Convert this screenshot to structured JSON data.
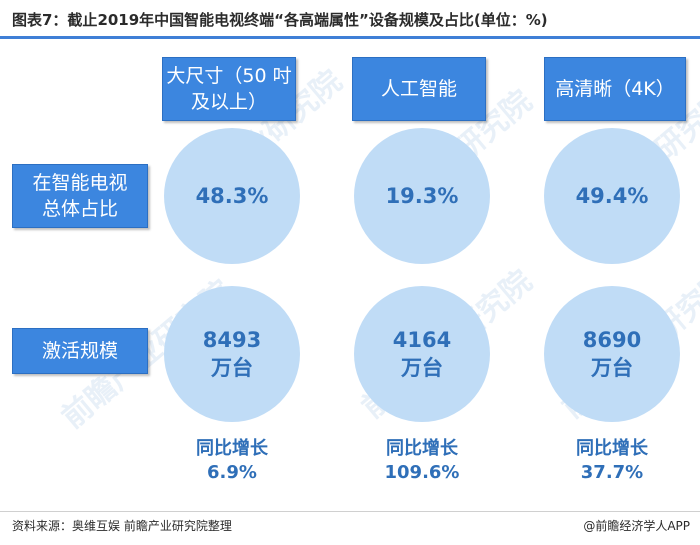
{
  "title": "图表7：截止2019年中国智能电视终端“各高端属性”设备规模及占比(单位：%)",
  "columns": [
    {
      "label": "大尺寸（50 吋及以上）"
    },
    {
      "label": "人工智能"
    },
    {
      "label": "高清晰（4K）"
    }
  ],
  "rows": {
    "share_label": "在智能电视 总体占比",
    "scale_label": "激活规模"
  },
  "growth_label": "同比增长",
  "watermark_text": "前瞻产业研究院",
  "footer": {
    "source": "资料来源：奥维互娱 前瞻产业研究院整理",
    "brand": "@前瞻经济学人APP"
  },
  "colors": {
    "accent_blue": "#3c86df",
    "circle_fill": "#c0dcf6",
    "value_text": "#2f6fb8"
  },
  "chart_data": {
    "type": "table",
    "title": "图表7：截止2019年中国智能电视终端“各高端属性”设备规模及占比(单位：%)",
    "categories": [
      "大尺寸（50 吋及以上）",
      "人工智能",
      "高清晰（4K）"
    ],
    "share_values": [
      "48.3%",
      "19.3%",
      "49.4%"
    ],
    "scale_values": [
      "8493",
      "4164",
      "8690"
    ],
    "scale_unit": "万台",
    "growth_values": [
      "6.9%",
      "109.6%",
      "37.7%"
    ]
  }
}
